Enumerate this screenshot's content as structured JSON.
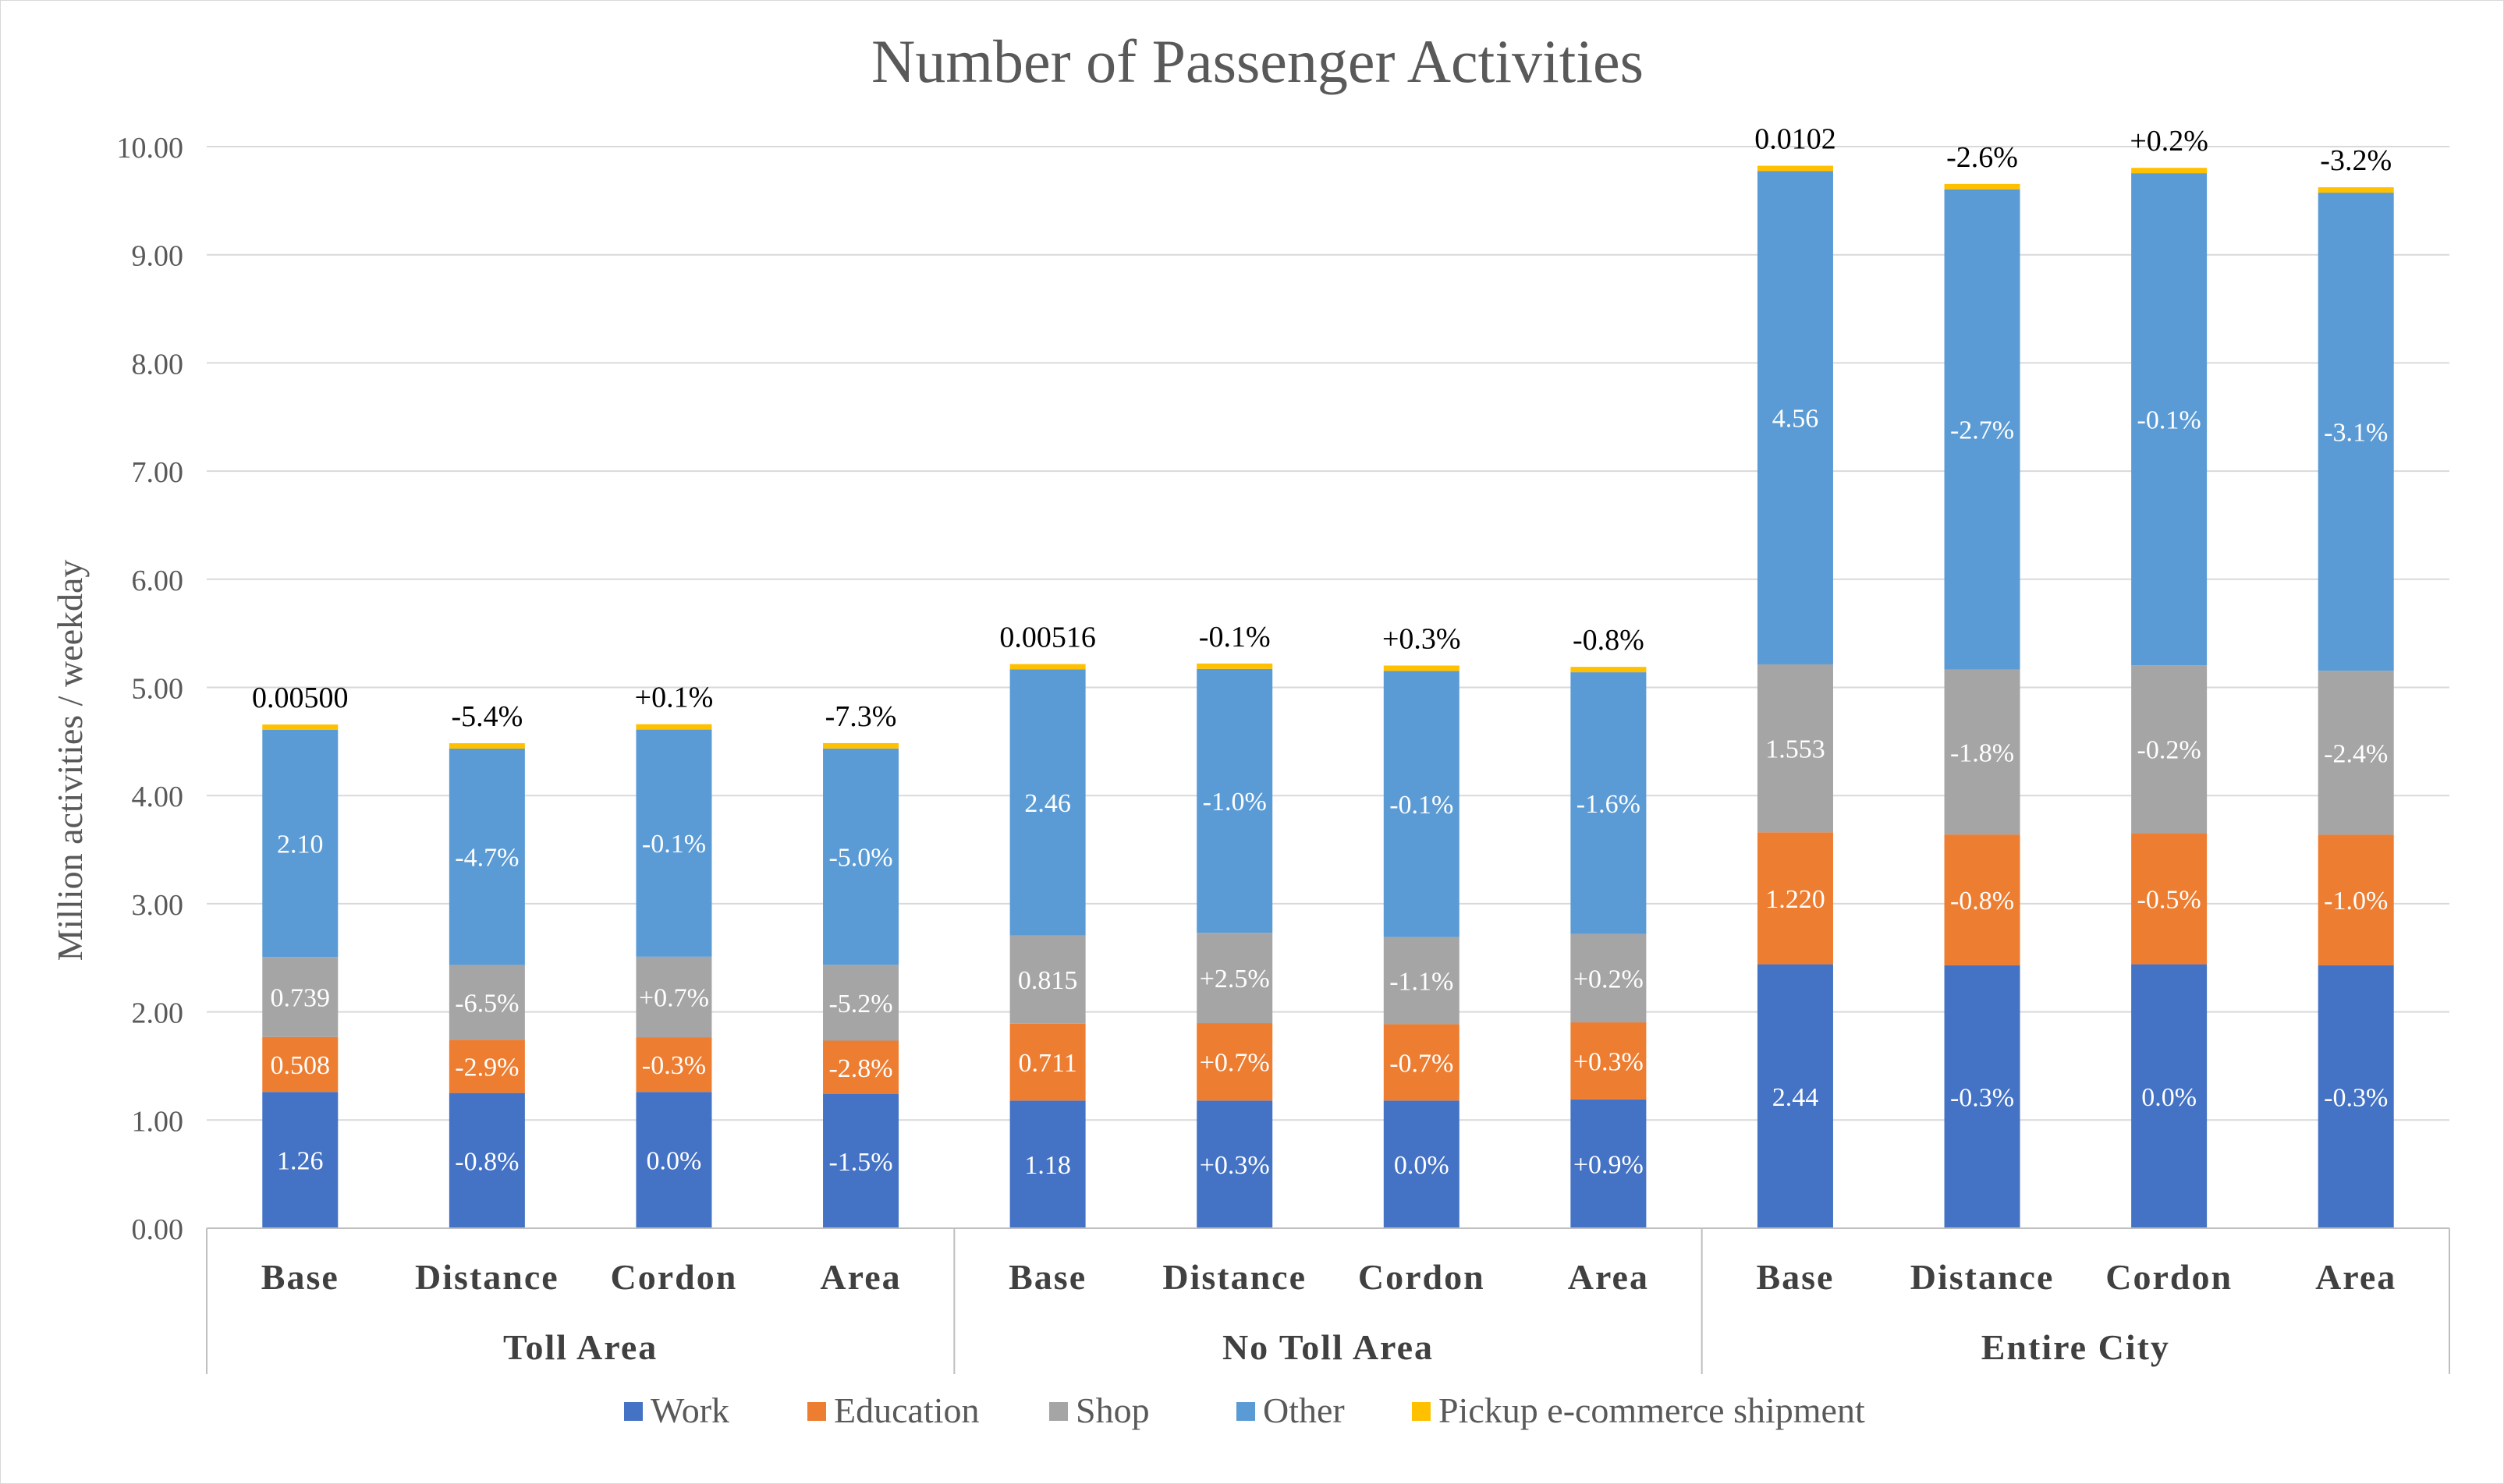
{
  "chart_data": {
    "type": "bar",
    "stacked": true,
    "title": "Number of Passenger Activities",
    "xlabel": "",
    "ylabel": "Million activities / weekday",
    "ylim": [
      0,
      10
    ],
    "yticks": [
      "0.00",
      "1.00",
      "2.00",
      "3.00",
      "4.00",
      "5.00",
      "6.00",
      "7.00",
      "8.00",
      "9.00",
      "10.00"
    ],
    "grid": true,
    "legend_position": "bottom",
    "groups": [
      "Toll Area",
      "No Toll Area",
      "Entire City"
    ],
    "categories": [
      "Base",
      "Distance",
      "Cordon",
      "Area",
      "Base",
      "Distance",
      "Cordon",
      "Area",
      "Base",
      "Distance",
      "Cordon",
      "Area"
    ],
    "series": [
      {
        "name": "Work",
        "color": "#4472C4",
        "values": [
          1.26,
          1.25,
          1.26,
          1.24,
          1.18,
          1.18,
          1.18,
          1.19,
          2.44,
          2.43,
          2.44,
          2.43
        ],
        "labels": [
          "1.26",
          "-0.8%",
          "0.0%",
          "-1.5%",
          "1.18",
          "+0.3%",
          "0.0%",
          "+0.9%",
          "2.44",
          "-0.3%",
          "0.0%",
          "-0.3%"
        ]
      },
      {
        "name": "Education",
        "color": "#ED7D31",
        "values": [
          0.508,
          0.493,
          0.506,
          0.494,
          0.711,
          0.716,
          0.706,
          0.713,
          1.22,
          1.21,
          1.214,
          1.208
        ],
        "labels": [
          "0.508",
          "-2.9%",
          "-0.3%",
          "-2.8%",
          "0.711",
          "+0.7%",
          "-0.7%",
          "+0.3%",
          "1.220",
          "-0.8%",
          "-0.5%",
          "-1.0%"
        ]
      },
      {
        "name": "Shop",
        "color": "#A5A5A5",
        "values": [
          0.739,
          0.691,
          0.744,
          0.701,
          0.815,
          0.835,
          0.806,
          0.817,
          1.553,
          1.525,
          1.55,
          1.516
        ],
        "labels": [
          "0.739",
          "-6.5%",
          "+0.7%",
          "-5.2%",
          "0.815",
          "+2.5%",
          "-1.1%",
          "+0.2%",
          "1.553",
          "-1.8%",
          "-0.2%",
          "-2.4%"
        ]
      },
      {
        "name": "Other",
        "color": "#5B9BD5",
        "values": [
          2.1,
          2.0,
          2.1,
          2.0,
          2.46,
          2.44,
          2.46,
          2.42,
          4.56,
          4.44,
          4.55,
          4.42
        ],
        "labels": [
          "2.10",
          "-4.7%",
          "-0.1%",
          "-5.0%",
          "2.46",
          "-1.0%",
          "-0.1%",
          "-1.6%",
          "4.56",
          "-2.7%",
          "-0.1%",
          "-3.1%"
        ]
      },
      {
        "name": "Pickup e-commerce shipment",
        "color": "#FFC000",
        "values": [
          0.05,
          0.05,
          0.05,
          0.05,
          0.05,
          0.05,
          0.05,
          0.05,
          0.05,
          0.05,
          0.05,
          0.05
        ],
        "labels": []
      }
    ],
    "top_labels": [
      "0.00500",
      "-5.4%",
      "+0.1%",
      "-7.3%",
      "0.00516",
      "-0.1%",
      "+0.3%",
      "-0.8%",
      "0.0102",
      "-2.6%",
      "+0.2%",
      "-3.2%"
    ]
  }
}
